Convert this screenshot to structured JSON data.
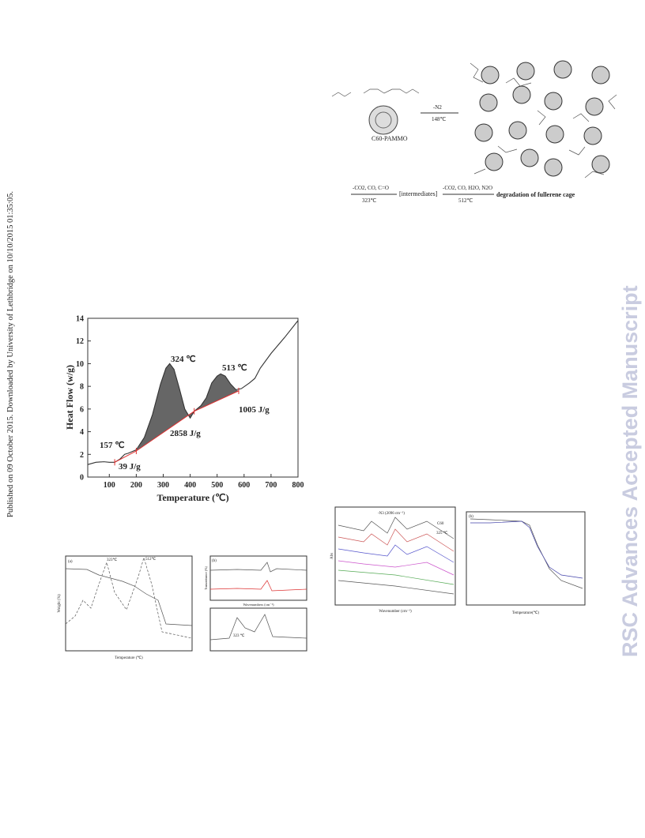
{
  "side_note": "Published on 09 October 2015. Downloaded by University of Lethbridge on 10/10/2015 01:35:05.",
  "watermark": "RSC Advances Accepted Manuscript",
  "scheme": {
    "compound": "C60-PAMMO",
    "step1_loss": "-N2",
    "step1_temp": "148℃",
    "step2_loss": "-CO2, CO, C=O",
    "step2_temp": "323℃",
    "intermediate": "[intermediates]",
    "step3_loss": "-CO2, CO, H2O, N2O",
    "step3_temp": "512℃",
    "product": "degradation of fullerene cage"
  },
  "chart_data": {
    "type": "line",
    "x_label": "Temperature (℃)",
    "y_label": "Heat Flow (w/g)",
    "x": [
      20,
      50,
      80,
      100,
      120,
      140,
      157,
      170,
      200,
      230,
      260,
      290,
      310,
      324,
      340,
      360,
      380,
      400,
      415,
      440,
      460,
      480,
      500,
      513,
      530,
      550,
      570,
      590,
      620,
      640,
      660,
      700,
      750,
      800
    ],
    "values": [
      1.1,
      1.3,
      1.35,
      1.3,
      1.3,
      1.6,
      2.0,
      2.1,
      2.4,
      3.5,
      5.5,
      8.2,
      9.6,
      10.0,
      9.5,
      7.8,
      6.0,
      5.2,
      5.8,
      6.3,
      7.0,
      8.3,
      8.9,
      9.1,
      8.9,
      8.2,
      7.7,
      7.8,
      8.3,
      8.7,
      9.6,
      10.9,
      12.3,
      13.8
    ],
    "color": "#333333",
    "baseline": {
      "x": [
        120,
        200,
        415,
        580
      ],
      "values": [
        1.3,
        2.3,
        5.8,
        7.6
      ],
      "color": "#e03030"
    },
    "annotations": [
      "324 ℃",
      "513 ℃",
      "157 ℃",
      "39 J/g",
      "2858 J/g",
      "1005 J/g"
    ],
    "xlim": [
      20,
      800
    ],
    "ylim": [
      0,
      14
    ],
    "xticks": [
      100,
      200,
      300,
      400,
      500,
      600,
      700,
      800
    ],
    "yticks": [
      0,
      2,
      4,
      6,
      8,
      10,
      12,
      14
    ]
  },
  "figures": {
    "tga": {
      "panel": "(a)",
      "peak1": "323℃",
      "peak2": "512℃",
      "y_label": "Weight (%)",
      "x_label": "Temperature (℃)"
    },
    "ftir": {
      "panel": "(b)",
      "x_label": "Wavenumbers (cm⁻¹)",
      "y_label": "Transmittance (%)",
      "peak": "323 ℃"
    },
    "insitu": {
      "note": "-N3 (2096 cm⁻¹)",
      "x_label": "Wavenumber (cm⁻¹)",
      "y_label": "Abs",
      "label": "C60",
      "temp": "325 ℃"
    },
    "ratio": {
      "panel": "(b)",
      "x_label": "Temperature(℃)"
    }
  }
}
